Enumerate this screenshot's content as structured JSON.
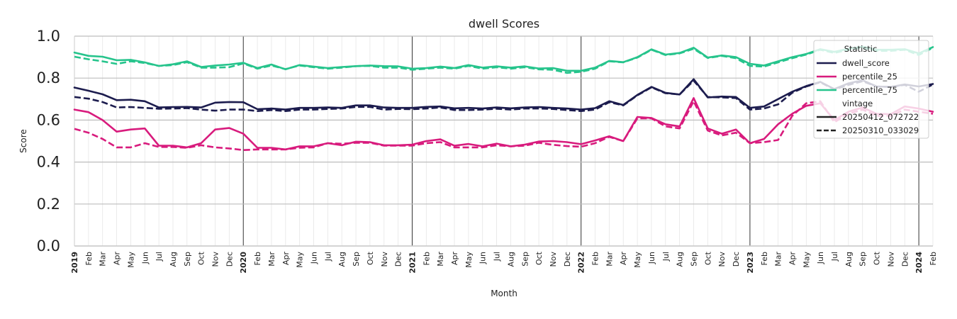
{
  "chart_data": {
    "type": "line",
    "title": "dwell Scores",
    "xlabel": "Month",
    "ylabel": "Score",
    "ylim": [
      0.0,
      1.0
    ],
    "yticks": [
      "0.0",
      "0.2",
      "0.4",
      "0.6",
      "0.8",
      "1.0"
    ],
    "grid": true,
    "legend_position": "top-right",
    "x": [
      "2019-01",
      "2019-02",
      "2019-03",
      "2019-04",
      "2019-05",
      "2019-06",
      "2019-07",
      "2019-08",
      "2019-09",
      "2019-10",
      "2019-11",
      "2019-12",
      "2020-01",
      "2020-02",
      "2020-03",
      "2020-04",
      "2020-05",
      "2020-06",
      "2020-07",
      "2020-08",
      "2020-09",
      "2020-10",
      "2020-11",
      "2020-12",
      "2021-01",
      "2021-02",
      "2021-03",
      "2021-04",
      "2021-05",
      "2021-06",
      "2021-07",
      "2021-08",
      "2021-09",
      "2021-10",
      "2021-11",
      "2021-12",
      "2022-01",
      "2022-02",
      "2022-03",
      "2022-04",
      "2022-05",
      "2022-06",
      "2022-07",
      "2022-08",
      "2022-09",
      "2022-10",
      "2022-11",
      "2022-12",
      "2023-01",
      "2023-02",
      "2023-03",
      "2023-04",
      "2023-05",
      "2023-06",
      "2023-07",
      "2023-08",
      "2023-09",
      "2023-10",
      "2023-11",
      "2023-12",
      "2024-01",
      "2024-02"
    ],
    "xtick_labels": [
      "2019",
      "Feb",
      "Mar",
      "Apr",
      "May",
      "Jun",
      "Jul",
      "Aug",
      "Sep",
      "Oct",
      "Nov",
      "Dec",
      "2020",
      "Feb",
      "Mar",
      "Apr",
      "May",
      "Jun",
      "Jul",
      "Aug",
      "Sep",
      "Oct",
      "Nov",
      "Dec",
      "2021",
      "Feb",
      "Mar",
      "Apr",
      "May",
      "Jun",
      "Jul",
      "Aug",
      "Sep",
      "Oct",
      "Nov",
      "Dec",
      "2022",
      "Feb",
      "Mar",
      "Apr",
      "May",
      "Jun",
      "Jul",
      "Aug",
      "Sep",
      "Oct",
      "Nov",
      "Dec",
      "2023",
      "Feb",
      "Mar",
      "Apr",
      "May",
      "Jun",
      "Jul",
      "Aug",
      "Sep",
      "Oct",
      "Nov",
      "Dec",
      "2024",
      "Feb"
    ],
    "series": [
      {
        "name": "dwell_score",
        "vintage": "20250412_072722",
        "color": "#1c1c4e",
        "style": "solid",
        "values": [
          0.755,
          0.74,
          0.723,
          0.695,
          0.697,
          0.69,
          0.66,
          0.662,
          0.663,
          0.66,
          0.683,
          0.686,
          0.685,
          0.652,
          0.655,
          0.65,
          0.658,
          0.658,
          0.66,
          0.658,
          0.67,
          0.67,
          0.66,
          0.658,
          0.658,
          0.663,
          0.665,
          0.656,
          0.658,
          0.655,
          0.66,
          0.656,
          0.66,
          0.662,
          0.658,
          0.655,
          0.65,
          0.657,
          0.69,
          0.672,
          0.72,
          0.758,
          0.73,
          0.722,
          0.795,
          0.708,
          0.712,
          0.71,
          0.658,
          0.665,
          0.7,
          0.735,
          0.762,
          0.782,
          0.748,
          0.775,
          0.79,
          0.76,
          0.758,
          0.77,
          0.76,
          0.772
        ]
      },
      {
        "name": "dwell_score",
        "vintage": "20250310_033029",
        "color": "#1c1c4e",
        "style": "dashed",
        "values": [
          0.71,
          0.702,
          0.686,
          0.66,
          0.662,
          0.658,
          0.654,
          0.655,
          0.657,
          0.65,
          0.645,
          0.65,
          0.65,
          0.643,
          0.648,
          0.643,
          0.65,
          0.65,
          0.653,
          0.655,
          0.663,
          0.663,
          0.65,
          0.653,
          0.652,
          0.655,
          0.66,
          0.648,
          0.648,
          0.65,
          0.654,
          0.65,
          0.655,
          0.655,
          0.653,
          0.648,
          0.643,
          0.65,
          0.685,
          0.67,
          0.718,
          0.756,
          0.728,
          0.722,
          0.788,
          0.71,
          0.708,
          0.705,
          0.65,
          0.655,
          0.675,
          0.73,
          0.76,
          0.78,
          0.746,
          0.768,
          0.785,
          0.76,
          0.758,
          0.768,
          0.735,
          0.77
        ]
      },
      {
        "name": "percentile_25",
        "vintage": "20250412_072722",
        "color": "#d81b7d",
        "style": "solid",
        "values": [
          0.65,
          0.638,
          0.6,
          0.545,
          0.555,
          0.56,
          0.478,
          0.478,
          0.47,
          0.49,
          0.555,
          0.562,
          0.535,
          0.468,
          0.468,
          0.46,
          0.475,
          0.475,
          0.49,
          0.48,
          0.497,
          0.495,
          0.48,
          0.48,
          0.483,
          0.5,
          0.508,
          0.478,
          0.486,
          0.475,
          0.488,
          0.475,
          0.483,
          0.498,
          0.5,
          0.495,
          0.485,
          0.503,
          0.523,
          0.5,
          0.615,
          0.61,
          0.58,
          0.57,
          0.705,
          0.56,
          0.535,
          0.555,
          0.49,
          0.51,
          0.58,
          0.63,
          0.668,
          0.68,
          0.6,
          0.64,
          0.66,
          0.63,
          0.628,
          0.665,
          0.655,
          0.64
        ]
      },
      {
        "name": "percentile_25",
        "vintage": "20250310_033029",
        "color": "#d81b7d",
        "style": "dashed",
        "values": [
          0.558,
          0.54,
          0.51,
          0.47,
          0.47,
          0.49,
          0.472,
          0.472,
          0.468,
          0.48,
          0.47,
          0.465,
          0.457,
          0.46,
          0.46,
          0.46,
          0.468,
          0.47,
          0.49,
          0.487,
          0.492,
          0.492,
          0.478,
          0.478,
          0.478,
          0.49,
          0.495,
          0.47,
          0.47,
          0.47,
          0.48,
          0.475,
          0.478,
          0.492,
          0.482,
          0.476,
          0.473,
          0.49,
          0.52,
          0.5,
          0.608,
          0.608,
          0.57,
          0.56,
          0.69,
          0.55,
          0.527,
          0.54,
          0.49,
          0.495,
          0.505,
          0.62,
          0.68,
          0.69,
          0.59,
          0.63,
          0.65,
          0.62,
          0.62,
          0.65,
          0.64,
          0.63
        ]
      },
      {
        "name": "percentile_75",
        "vintage": "20250412_072722",
        "color": "#26c48c",
        "style": "solid",
        "values": [
          0.922,
          0.906,
          0.902,
          0.885,
          0.887,
          0.875,
          0.858,
          0.866,
          0.88,
          0.853,
          0.86,
          0.865,
          0.873,
          0.848,
          0.865,
          0.842,
          0.862,
          0.855,
          0.848,
          0.853,
          0.857,
          0.86,
          0.857,
          0.856,
          0.845,
          0.848,
          0.855,
          0.848,
          0.862,
          0.85,
          0.856,
          0.85,
          0.856,
          0.846,
          0.848,
          0.835,
          0.835,
          0.85,
          0.882,
          0.876,
          0.9,
          0.937,
          0.912,
          0.92,
          0.945,
          0.898,
          0.908,
          0.9,
          0.868,
          0.86,
          0.88,
          0.9,
          0.915,
          0.938,
          0.925,
          0.94,
          0.95,
          0.935,
          0.935,
          0.938,
          0.918,
          0.948
        ]
      },
      {
        "name": "percentile_75",
        "vintage": "20250310_033029",
        "color": "#26c48c",
        "style": "dashed",
        "values": [
          0.902,
          0.89,
          0.88,
          0.868,
          0.88,
          0.872,
          0.858,
          0.862,
          0.876,
          0.85,
          0.85,
          0.852,
          0.87,
          0.845,
          0.86,
          0.843,
          0.86,
          0.852,
          0.845,
          0.85,
          0.857,
          0.858,
          0.85,
          0.85,
          0.84,
          0.845,
          0.85,
          0.845,
          0.858,
          0.845,
          0.852,
          0.845,
          0.852,
          0.842,
          0.84,
          0.825,
          0.83,
          0.845,
          0.88,
          0.875,
          0.898,
          0.935,
          0.91,
          0.918,
          0.94,
          0.896,
          0.906,
          0.895,
          0.858,
          0.855,
          0.875,
          0.895,
          0.912,
          0.935,
          0.92,
          0.935,
          0.945,
          0.93,
          0.93,
          0.935,
          0.91,
          0.945
        ]
      }
    ],
    "legend": {
      "title": "Statistic",
      "entries": [
        {
          "label": "dwell_score",
          "color": "#1c1c4e",
          "style": "solid"
        },
        {
          "label": "percentile_25",
          "color": "#d81b7d",
          "style": "solid"
        },
        {
          "label": "percentile_75",
          "color": "#26c48c",
          "style": "solid"
        }
      ],
      "subtitle": "vintage",
      "style_entries": [
        {
          "label": "20250412_072722",
          "color": "#222222",
          "style": "solid"
        },
        {
          "label": "20250310_033029",
          "color": "#222222",
          "style": "dashed"
        }
      ]
    }
  }
}
